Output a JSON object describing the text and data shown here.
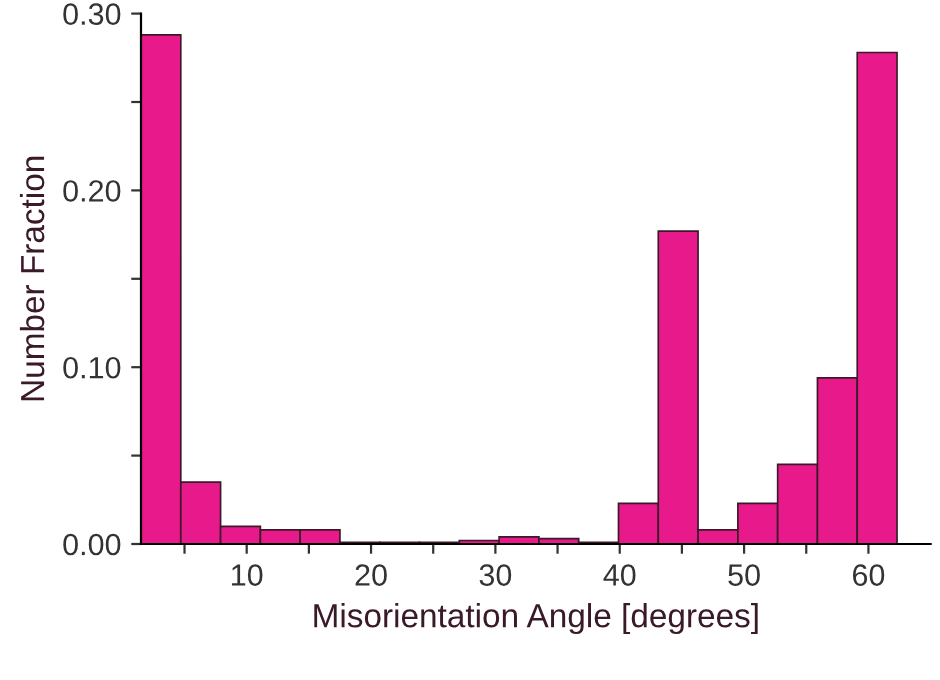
{
  "chart_data": {
    "type": "histogram",
    "xlabel": "Misorientation Angle [degrees]",
    "ylabel": "Number Fraction",
    "bins": [
      1.5,
      4.7,
      7.9,
      11.1,
      14.3,
      17.5,
      20.7,
      23.9,
      27.1,
      30.3,
      33.5,
      36.7,
      39.9,
      43.1,
      46.3,
      49.5,
      52.7,
      55.9,
      59.1,
      62.3
    ],
    "values": [
      0.288,
      0.035,
      0.01,
      0.008,
      0.008,
      0.001,
      0.001,
      0.001,
      0.002,
      0.004,
      0.003,
      0.001,
      0.023,
      0.177,
      0.008,
      0.023,
      0.045,
      0.094,
      0.278
    ],
    "color": "#e8198b",
    "xlim": [
      1.5,
      65
    ],
    "xticks": [
      {
        "value": 5,
        "label": null
      },
      10,
      {
        "value": 15,
        "label": null
      },
      20,
      {
        "value": 25,
        "label": null
      },
      30,
      {
        "value": 35,
        "label": null
      },
      40,
      {
        "value": 45,
        "label": null
      },
      50,
      {
        "value": 55,
        "label": null
      },
      60
    ],
    "ylim": [
      0,
      0.3
    ],
    "yticks": [
      {
        "value": 0,
        "label": "0.00"
      },
      {
        "value": 0.05,
        "label": null
      },
      {
        "value": 0.1,
        "label": "0.10"
      },
      {
        "value": 0.15,
        "label": null
      },
      {
        "value": 0.2,
        "label": "0.20"
      },
      {
        "value": 0.25,
        "label": null
      },
      {
        "value": 0.3,
        "label": "0.30"
      }
    ],
    "grid": false
  }
}
